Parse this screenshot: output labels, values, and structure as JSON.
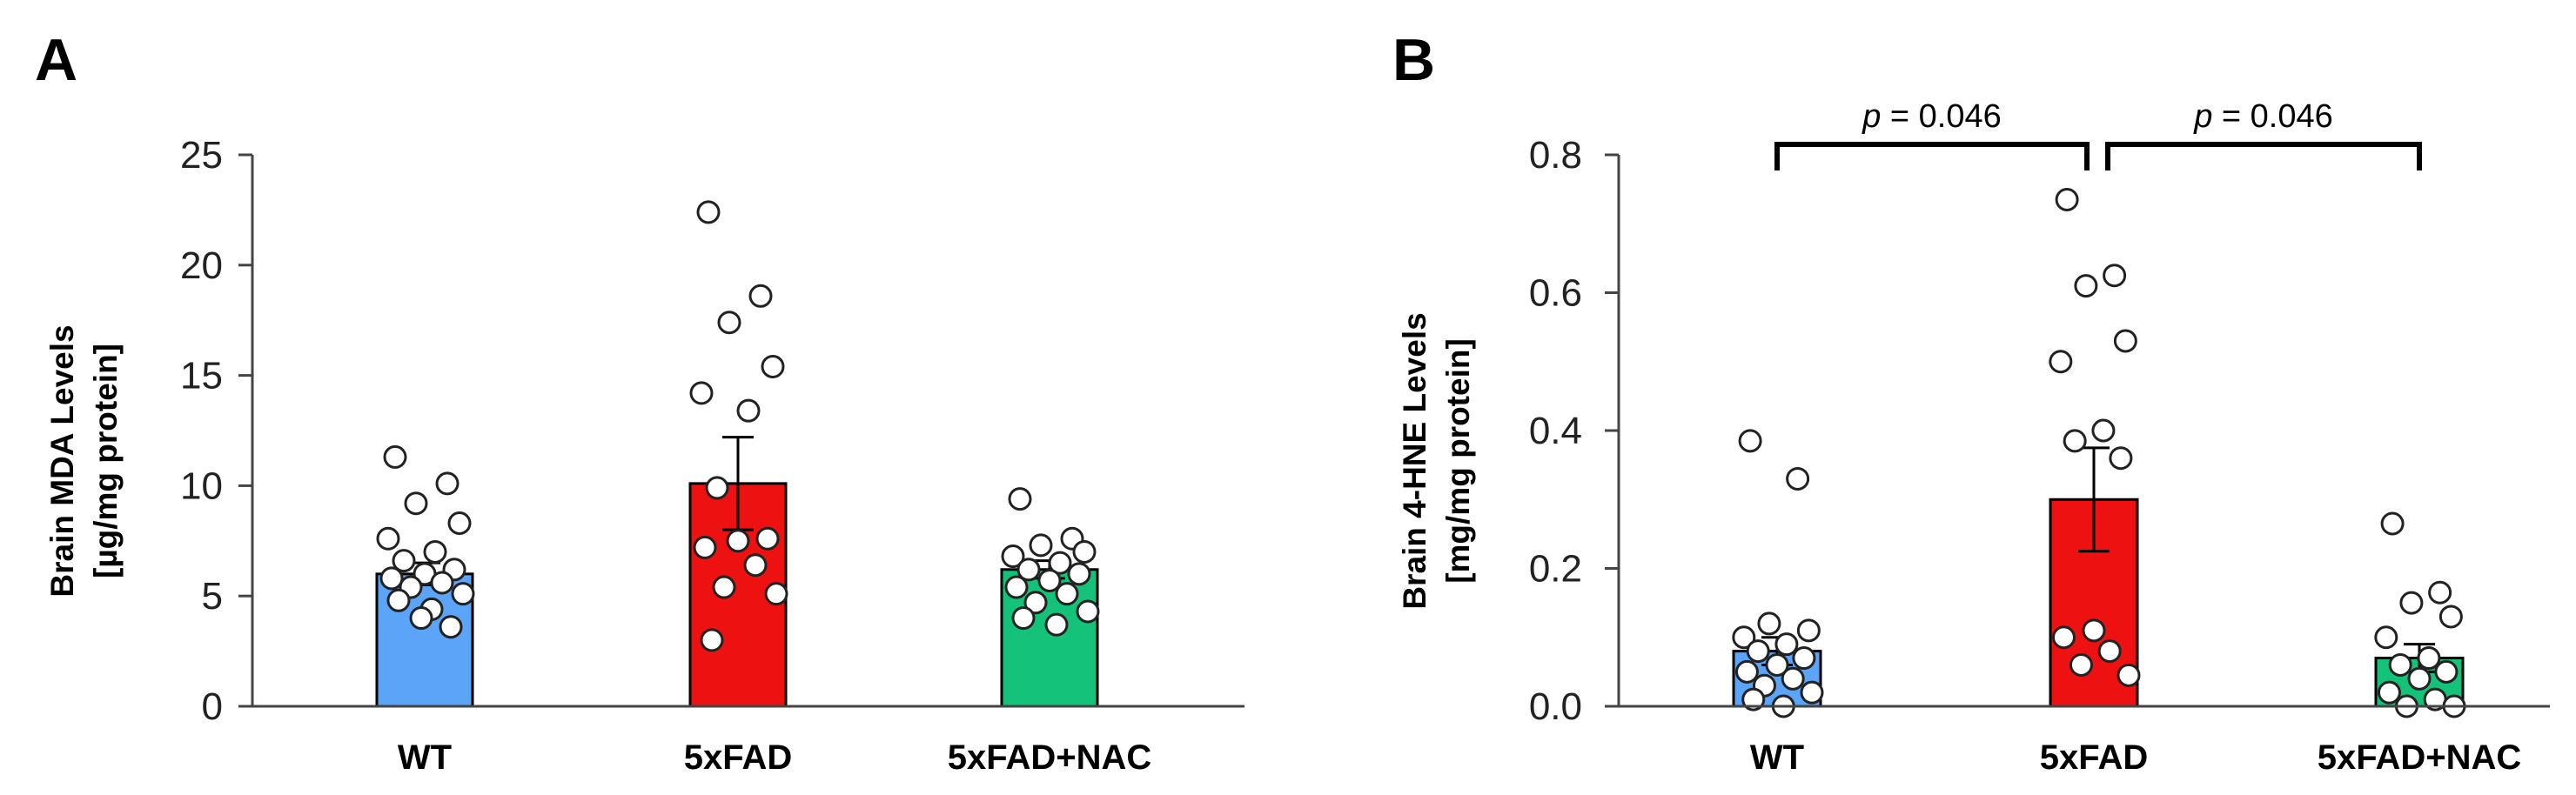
{
  "chart_data": [
    {
      "panel": "A",
      "type": "bar",
      "categories": [
        "WT",
        "5xFAD",
        "5xFAD+NAC"
      ],
      "ylabel_lines": [
        "Brain MDA Levels",
        "[µg/mg protein]"
      ],
      "ylim": [
        0,
        25
      ],
      "yticks": [
        0,
        5,
        10,
        15,
        20,
        25
      ],
      "ytick_labels": [
        "0",
        "5",
        "10",
        "15",
        "20",
        "25"
      ],
      "colors": [
        "#5ba4f8",
        "#ee1111",
        "#15c27a"
      ],
      "values": [
        6.0,
        10.1,
        6.2
      ],
      "errors": [
        0.5,
        2.1,
        0.4
      ],
      "points": [
        [
          11.3,
          10.1,
          9.2,
          8.3,
          7.6,
          7.0,
          6.6,
          6.2,
          6.0,
          5.8,
          5.6,
          5.4,
          5.1,
          4.8,
          4.4,
          4.0,
          3.6
        ],
        [
          22.4,
          18.6,
          17.4,
          15.4,
          14.2,
          13.4,
          9.9,
          7.6,
          7.5,
          7.2,
          6.4,
          5.4,
          5.1,
          3.0
        ],
        [
          9.4,
          7.6,
          7.3,
          7.0,
          6.8,
          6.5,
          6.2,
          6.0,
          5.7,
          5.4,
          5.1,
          4.7,
          4.3,
          4.0,
          3.7
        ]
      ],
      "grid": false
    },
    {
      "panel": "B",
      "type": "bar",
      "categories": [
        "WT",
        "5xFAD",
        "5xFAD+NAC"
      ],
      "ylabel_lines": [
        "Brain 4-HNE Levels",
        "[mg/mg protein]"
      ],
      "ylim": [
        0,
        0.8
      ],
      "yticks": [
        0,
        0.2,
        0.4,
        0.6,
        0.8
      ],
      "ytick_labels": [
        "0.0",
        "0.2",
        "0.4",
        "0.6",
        "0.8"
      ],
      "colors": [
        "#5ba4f8",
        "#ee1111",
        "#15c27a"
      ],
      "values": [
        0.08,
        0.3,
        0.07
      ],
      "errors": [
        0.02,
        0.075,
        0.02
      ],
      "points": [
        [
          0.385,
          0.33,
          0.12,
          0.11,
          0.1,
          0.09,
          0.08,
          0.07,
          0.06,
          0.05,
          0.04,
          0.03,
          0.02,
          0.01,
          0.0
        ],
        [
          0.735,
          0.625,
          0.61,
          0.53,
          0.5,
          0.4,
          0.385,
          0.36,
          0.11,
          0.1,
          0.08,
          0.06,
          0.045
        ],
        [
          0.265,
          0.165,
          0.15,
          0.13,
          0.1,
          0.07,
          0.06,
          0.05,
          0.04,
          0.02,
          0.01,
          0.0,
          0.0
        ]
      ],
      "comparisons": [
        {
          "from": 0,
          "to": 1,
          "label_p": "p",
          "label_value": "=  0.046"
        },
        {
          "from": 1,
          "to": 2,
          "label_p": "p",
          "label_value": "=  0.046"
        }
      ],
      "grid": false
    }
  ]
}
